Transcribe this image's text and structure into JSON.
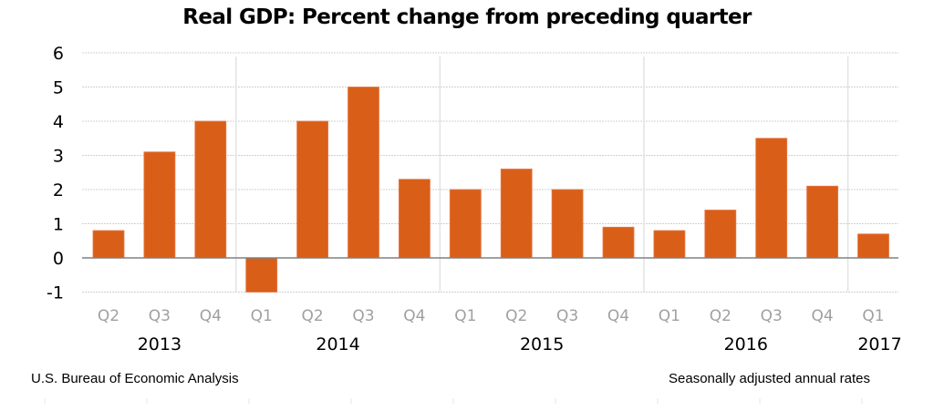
{
  "chart_data": {
    "type": "bar",
    "title": "Real GDP:  Percent change from preceding quarter",
    "xlabel": "",
    "ylabel": "",
    "ylim": [
      -1,
      6
    ],
    "yticks": [
      "6",
      "5",
      "4",
      "3",
      "2",
      "1",
      "0",
      "-1"
    ],
    "ytick_values": [
      6,
      5,
      4,
      3,
      2,
      1,
      0,
      -1
    ],
    "grid": true,
    "categories": [
      "Q2",
      "Q3",
      "Q4",
      "Q1",
      "Q2",
      "Q3",
      "Q4",
      "Q1",
      "Q2",
      "Q3",
      "Q4",
      "Q1",
      "Q2",
      "Q3",
      "Q4",
      "Q1"
    ],
    "years": [
      {
        "label": "2013",
        "start": 0,
        "count": 3
      },
      {
        "label": "2014",
        "start": 3,
        "count": 4
      },
      {
        "label": "2015",
        "start": 7,
        "count": 4
      },
      {
        "label": "2016",
        "start": 11,
        "count": 4
      },
      {
        "label": "2017",
        "start": 15,
        "count": 1
      }
    ],
    "series": [
      {
        "name": "Real GDP percent change",
        "color": "#D95F18",
        "values": [
          0.8,
          3.1,
          4.0,
          -1.0,
          4.0,
          5.0,
          2.3,
          2.0,
          2.6,
          2.0,
          0.9,
          0.8,
          1.4,
          3.5,
          2.1,
          0.7
        ]
      }
    ]
  },
  "footer": {
    "source": "U.S. Bureau of Economic Analysis",
    "note": "Seasonally adjusted annual  rates"
  }
}
